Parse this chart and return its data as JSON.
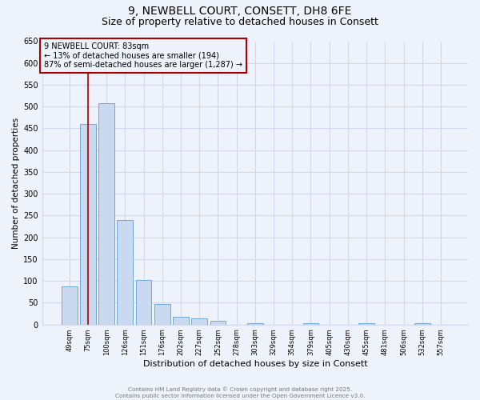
{
  "title_line1": "9, NEWBELL COURT, CONSETT, DH8 6FE",
  "title_line2": "Size of property relative to detached houses in Consett",
  "xlabel": "Distribution of detached houses by size in Consett",
  "ylabel": "Number of detached properties",
  "categories": [
    "49sqm",
    "75sqm",
    "100sqm",
    "126sqm",
    "151sqm",
    "176sqm",
    "202sqm",
    "227sqm",
    "252sqm",
    "278sqm",
    "303sqm",
    "329sqm",
    "354sqm",
    "379sqm",
    "405sqm",
    "430sqm",
    "455sqm",
    "481sqm",
    "506sqm",
    "532sqm",
    "557sqm"
  ],
  "values": [
    88,
    460,
    507,
    240,
    103,
    48,
    18,
    14,
    9,
    0,
    4,
    0,
    0,
    3,
    0,
    0,
    3,
    0,
    0,
    4,
    0
  ],
  "bar_color": "#c9d9f0",
  "bar_edge_color": "#6fa8d6",
  "ylim": [
    0,
    650
  ],
  "yticks": [
    0,
    50,
    100,
    150,
    200,
    250,
    300,
    350,
    400,
    450,
    500,
    550,
    600,
    650
  ],
  "red_line_x": "75sqm",
  "annotation_title": "9 NEWBELL COURT: 83sqm",
  "annotation_line1": "← 13% of detached houses are smaller (194)",
  "annotation_line2": "87% of semi-detached houses are larger (1,287) →",
  "annotation_box_color": "#aa0000",
  "footer_line1": "Contains HM Land Registry data © Crown copyright and database right 2025.",
  "footer_line2": "Contains public sector information licensed under the Open Government Licence v3.0.",
  "bg_color": "#eef2fb",
  "grid_color": "#d0d8ee",
  "title_fontsize": 10,
  "subtitle_fontsize": 9,
  "bar_width": 0.85
}
